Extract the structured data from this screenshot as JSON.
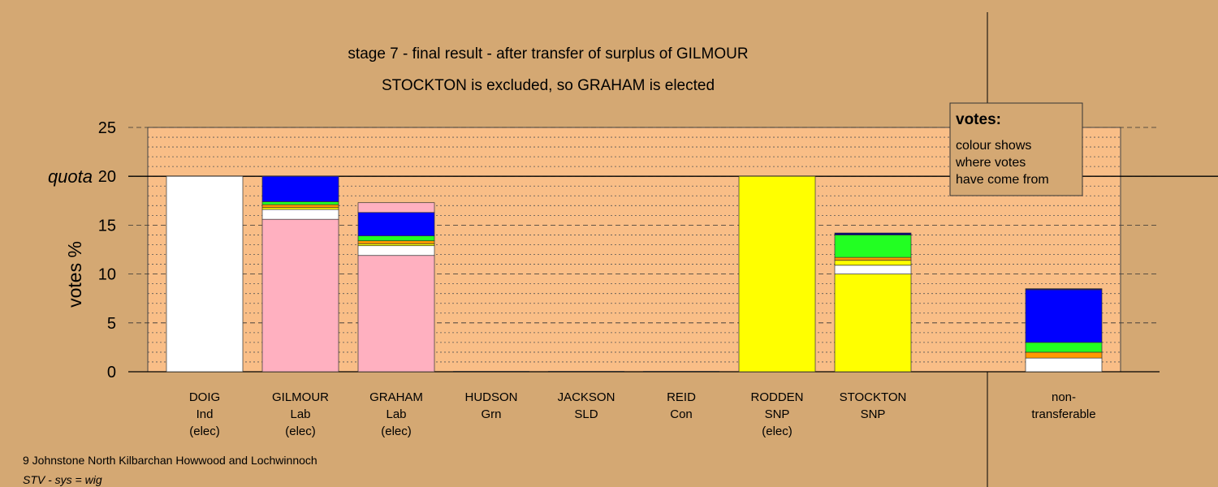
{
  "chart_data": {
    "type": "stacked-bar",
    "title": "stage 7 - final result - after transfer of surplus of GILMOUR",
    "subtitle": "STOCKTON is excluded, so GRAHAM is elected",
    "y_label": "votes %",
    "quota": 20,
    "quota_label": "quota",
    "ylim": [
      0,
      25
    ],
    "yticks": [
      0,
      5,
      10,
      15,
      20,
      25
    ],
    "minor_yticks": [
      1,
      2,
      3,
      4,
      6,
      7,
      8,
      9,
      11,
      12,
      13,
      14,
      16,
      17,
      18,
      19,
      21,
      22,
      23,
      24
    ],
    "categories": [
      [
        "DOIG",
        "Ind",
        "(elec)"
      ],
      [
        "GILMOUR",
        "Lab",
        "(elec)"
      ],
      [
        "GRAHAM",
        "Lab",
        "(elec)"
      ],
      [
        "HUDSON",
        "Grn"
      ],
      [
        "JACKSON",
        "SLD"
      ],
      [
        "REID",
        "Con"
      ],
      [
        "RODDEN",
        "SNP",
        "(elec)"
      ],
      [
        "STOCKTON",
        "SNP"
      ],
      [
        "non-",
        "transferable"
      ]
    ],
    "stacks": [
      [
        {
          "color": "#ffffff",
          "value": 20
        }
      ],
      [
        {
          "color": "#ffb0c0",
          "value": 15.6
        },
        {
          "color": "#ffffff",
          "value": 1.0
        },
        {
          "color": "#ffff00",
          "value": 0.2
        },
        {
          "color": "#ff9900",
          "value": 0.3
        },
        {
          "color": "#22ff22",
          "value": 0.3
        },
        {
          "color": "#0000ff",
          "value": 2.6
        }
      ],
      [
        {
          "color": "#ffb0c0",
          "value": 11.9
        },
        {
          "color": "#ffffff",
          "value": 1.0
        },
        {
          "color": "#ffff00",
          "value": 0.2
        },
        {
          "color": "#ff9900",
          "value": 0.3
        },
        {
          "color": "#22ff22",
          "value": 0.5
        },
        {
          "color": "#0000ff",
          "value": 2.4
        },
        {
          "color": "#ffb0c0",
          "value": 1.0
        }
      ],
      [],
      [],
      [],
      [
        {
          "color": "#ffff00",
          "value": 20
        }
      ],
      [
        {
          "color": "#ffff00",
          "value": 10.0
        },
        {
          "color": "#ffffff",
          "value": 0.9
        },
        {
          "color": "#ffff00",
          "value": 0.5
        },
        {
          "color": "#ff9900",
          "value": 0.3
        },
        {
          "color": "#22ff22",
          "value": 2.3
        },
        {
          "color": "#000080",
          "value": 0.2
        }
      ],
      [
        {
          "color": "#ffffff",
          "value": 1.4
        },
        {
          "color": "#ff9900",
          "value": 0.6
        },
        {
          "color": "#22ff22",
          "value": 1.0
        },
        {
          "color": "#0000ff",
          "value": 5.4
        },
        {
          "color": "#000080",
          "value": 0.1
        }
      ]
    ],
    "legend": {
      "title": "votes:",
      "lines": [
        "colour shows",
        "where votes",
        "have come from"
      ]
    },
    "footer": {
      "constituency": "9 Johnstone North Kilbarchan Howwood and Lochwinnoch",
      "system": "STV - sys = wig"
    }
  }
}
